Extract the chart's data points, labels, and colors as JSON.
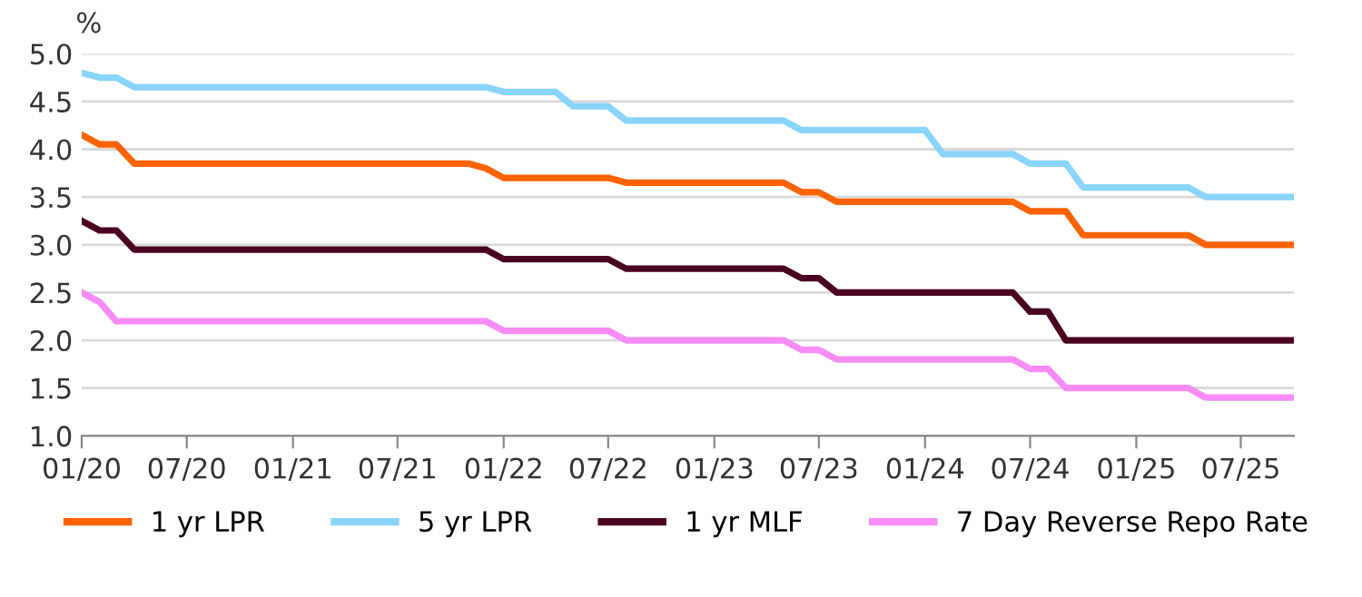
{
  "chart_data": {
    "type": "line",
    "ylabel": "%",
    "xlim": [
      "2020-01",
      "2025-10"
    ],
    "xticks": [
      {
        "value": "2020-01",
        "label": "01/20"
      },
      {
        "value": "2020-07",
        "label": "07/20"
      },
      {
        "value": "2021-01",
        "label": "01/21"
      },
      {
        "value": "2021-07",
        "label": "07/21"
      },
      {
        "value": "2022-01",
        "label": "01/22"
      },
      {
        "value": "2022-07",
        "label": "07/22"
      },
      {
        "value": "2023-01",
        "label": "01/23"
      },
      {
        "value": "2023-07",
        "label": "07/23"
      },
      {
        "value": "2024-01",
        "label": "01/24"
      },
      {
        "value": "2024-07",
        "label": "07/24"
      },
      {
        "value": "2025-01",
        "label": "01/25"
      },
      {
        "value": "2025-07",
        "label": "07/25"
      }
    ],
    "ylim": [
      1.0,
      5.0
    ],
    "yticks": [
      {
        "value": 1.0,
        "label": "1.0"
      },
      {
        "value": 1.5,
        "label": "1.5"
      },
      {
        "value": 2.0,
        "label": "2.0"
      },
      {
        "value": 2.5,
        "label": "2.5"
      },
      {
        "value": 3.0,
        "label": "3.0"
      },
      {
        "value": 3.5,
        "label": "3.5"
      },
      {
        "value": 4.0,
        "label": "4.0"
      },
      {
        "value": 4.5,
        "label": "4.5"
      },
      {
        "value": 5.0,
        "label": "5.0"
      }
    ],
    "grid": "y",
    "legend": "bottom",
    "marker": "none",
    "line_style": "solid",
    "series": [
      {
        "name": "1 yr LPR",
        "color": "#ff6200",
        "x": [
          "2020-01",
          "2020-02",
          "2020-03",
          "2020-04",
          "2021-11",
          "2021-12",
          "2022-01",
          "2022-07",
          "2022-08",
          "2023-05",
          "2023-06",
          "2023-07",
          "2023-08",
          "2024-06",
          "2024-07",
          "2024-09",
          "2024-10",
          "2025-04",
          "2025-05",
          "2025-10"
        ],
        "values": [
          4.15,
          4.05,
          4.05,
          3.85,
          3.85,
          3.8,
          3.7,
          3.7,
          3.65,
          3.65,
          3.55,
          3.55,
          3.45,
          3.45,
          3.35,
          3.35,
          3.1,
          3.1,
          3.0,
          3.0
        ]
      },
      {
        "name": "5 yr LPR",
        "color": "#89d4fa",
        "x": [
          "2020-01",
          "2020-02",
          "2020-03",
          "2020-04",
          "2021-12",
          "2022-01",
          "2022-04",
          "2022-05",
          "2022-07",
          "2022-08",
          "2023-05",
          "2023-06",
          "2024-01",
          "2024-02",
          "2024-06",
          "2024-07",
          "2024-09",
          "2024-10",
          "2025-04",
          "2025-05",
          "2025-10"
        ],
        "values": [
          4.8,
          4.75,
          4.75,
          4.65,
          4.65,
          4.6,
          4.6,
          4.45,
          4.45,
          4.3,
          4.3,
          4.2,
          4.2,
          3.95,
          3.95,
          3.85,
          3.85,
          3.6,
          3.6,
          3.5,
          3.5
        ]
      },
      {
        "name": "1 yr MLF",
        "color": "#4a0020",
        "x": [
          "2020-01",
          "2020-02",
          "2020-03",
          "2020-04",
          "2021-12",
          "2022-01",
          "2022-07",
          "2022-08",
          "2023-05",
          "2023-06",
          "2023-07",
          "2023-08",
          "2024-06",
          "2024-07",
          "2024-08",
          "2024-09",
          "2025-10"
        ],
        "values": [
          3.25,
          3.15,
          3.15,
          2.95,
          2.95,
          2.85,
          2.85,
          2.75,
          2.75,
          2.65,
          2.65,
          2.5,
          2.5,
          2.3,
          2.3,
          2.0,
          2.0
        ]
      },
      {
        "name": "7 Day Reverse Repo Rate",
        "color": "#f78cf7",
        "x": [
          "2020-01",
          "2020-02",
          "2020-03",
          "2021-12",
          "2022-01",
          "2022-07",
          "2022-08",
          "2023-05",
          "2023-06",
          "2023-07",
          "2023-08",
          "2024-06",
          "2024-07",
          "2024-08",
          "2024-09",
          "2025-04",
          "2025-05",
          "2025-10"
        ],
        "values": [
          2.5,
          2.4,
          2.2,
          2.2,
          2.1,
          2.1,
          2.0,
          2.0,
          1.9,
          1.9,
          1.8,
          1.8,
          1.7,
          1.7,
          1.5,
          1.5,
          1.4,
          1.4
        ]
      }
    ]
  }
}
